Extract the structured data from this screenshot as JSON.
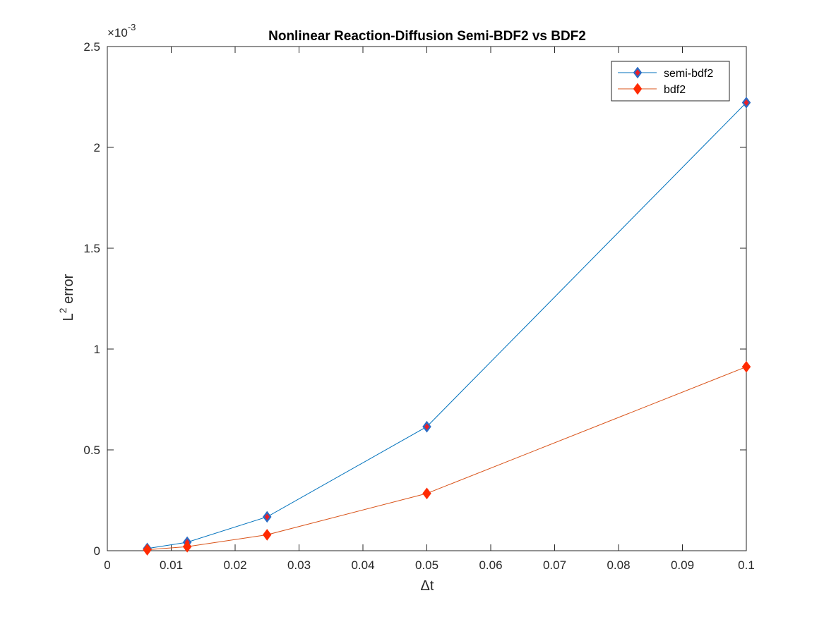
{
  "chart_data": {
    "type": "line",
    "title": "Nonlinear Reaction-Diffusion Semi-BDF2 vs BDF2",
    "xlabel": "Δt",
    "ylabel_base": "L",
    "ylabel_sup": "2",
    "ylabel_rest": " error",
    "xlim": [
      0,
      0.1
    ],
    "ylim": [
      0,
      0.0025
    ],
    "x_ticks": [
      0,
      0.01,
      0.02,
      0.03,
      0.04,
      0.05,
      0.06,
      0.07,
      0.08,
      0.09,
      0.1
    ],
    "x_tick_labels": [
      "0",
      "0.01",
      "0.02",
      "0.03",
      "0.04",
      "0.05",
      "0.06",
      "0.07",
      "0.08",
      "0.09",
      "0.1"
    ],
    "y_ticks": [
      0,
      0.0005,
      0.001,
      0.0015,
      0.002,
      0.0025
    ],
    "y_tick_labels": [
      "0",
      "0.5",
      "1",
      "1.5",
      "2",
      "2.5"
    ],
    "y_exponent_base": "×10",
    "y_exponent_power": "-3",
    "grid": false,
    "legend_position": "top-right",
    "x": [
      0.00625,
      0.0125,
      0.025,
      0.05,
      0.1
    ],
    "series": [
      {
        "name": "semi-bdf2",
        "line_color": "#0072BD",
        "marker_edge": "#2B6CC4",
        "marker_fill": "#E8202A",
        "values": [
          1.1e-05,
          4.2e-05,
          0.000168,
          0.000615,
          0.002222
        ]
      },
      {
        "name": "bdf2",
        "line_color": "#D95319",
        "marker_edge": "#FF2A00",
        "marker_fill": "#FF2A00",
        "values": [
          5e-06,
          2e-05,
          7.9e-05,
          0.000284,
          0.000912
        ]
      }
    ]
  }
}
